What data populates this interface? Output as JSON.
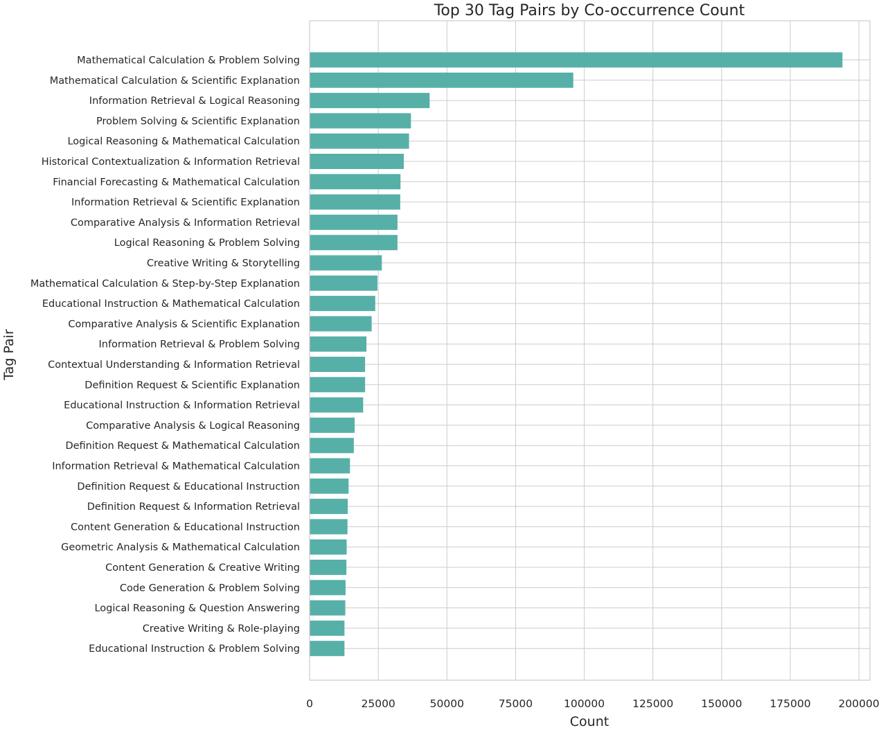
{
  "chart_data": {
    "type": "bar",
    "orientation": "horizontal",
    "title": "Top 30 Tag Pairs by Co-occurrence Count",
    "xlabel": "Count",
    "ylabel": "Tag Pair",
    "xlim": [
      0,
      204000
    ],
    "xticks": [
      0,
      25000,
      50000,
      75000,
      100000,
      125000,
      150000,
      175000,
      200000
    ],
    "xtick_labels": [
      "0",
      "25000",
      "50000",
      "75000",
      "100000",
      "125000",
      "150000",
      "175000",
      "200000"
    ],
    "grid": true,
    "bar_color": "#56b0a8",
    "categories": [
      "Mathematical Calculation & Problem Solving",
      "Mathematical Calculation & Scientific Explanation",
      "Information Retrieval & Logical Reasoning",
      "Problem Solving & Scientific Explanation",
      "Logical Reasoning & Mathematical Calculation",
      "Historical Contextualization & Information Retrieval",
      "Financial Forecasting & Mathematical Calculation",
      "Information Retrieval & Scientific Explanation",
      "Comparative Analysis & Information Retrieval",
      "Logical Reasoning & Problem Solving",
      "Creative Writing & Storytelling",
      "Mathematical Calculation & Step-by-Step Explanation",
      "Educational Instruction & Mathematical Calculation",
      "Comparative Analysis & Scientific Explanation",
      "Information Retrieval & Problem Solving",
      "Contextual Understanding & Information Retrieval",
      "Definition Request & Scientific Explanation",
      "Educational Instruction & Information Retrieval",
      "Comparative Analysis & Logical Reasoning",
      "Definition Request & Mathematical Calculation",
      "Information Retrieval & Mathematical Calculation",
      "Definition Request & Educational Instruction",
      "Definition Request & Information Retrieval",
      "Content Generation & Educational Instruction",
      "Geometric Analysis & Mathematical Calculation",
      "Content Generation & Creative Writing",
      "Code Generation & Problem Solving",
      "Logical Reasoning & Question Answering",
      "Creative Writing & Role-playing",
      "Educational Instruction & Problem Solving"
    ],
    "values": [
      194000,
      96000,
      43700,
      36900,
      36200,
      34300,
      33100,
      33000,
      32000,
      32000,
      26300,
      24700,
      23900,
      22600,
      20700,
      20200,
      20200,
      19500,
      16400,
      16100,
      14700,
      14200,
      13900,
      13800,
      13500,
      13400,
      13100,
      13000,
      12700,
      12700
    ]
  }
}
